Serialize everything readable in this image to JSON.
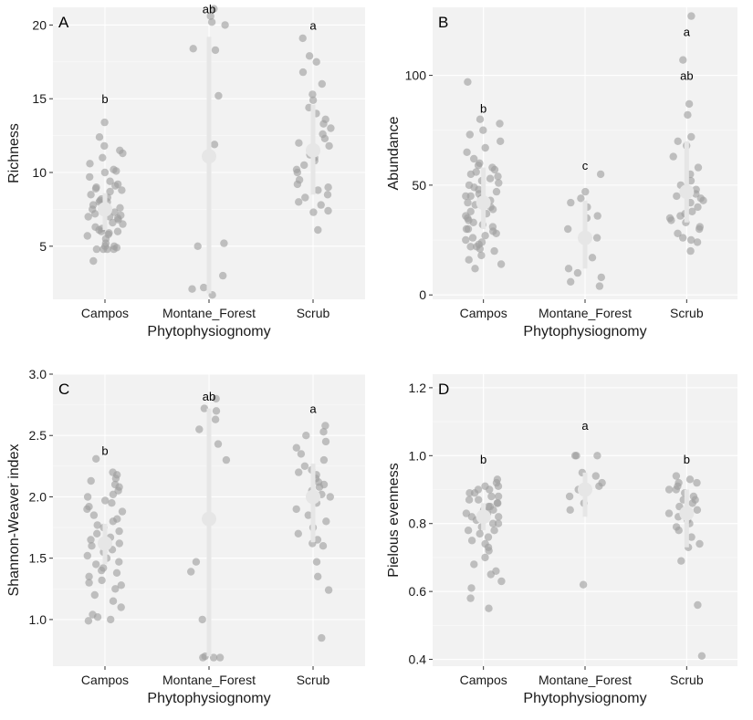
{
  "colors": {
    "panel_background": "#f2f2f2",
    "grid": "#ffffff",
    "points": "#9e9e9e",
    "mean_and_interval": "#e6e6e6",
    "text": "#1a1a1a"
  },
  "chart_data": [
    {
      "type": "scatter",
      "panel": "A",
      "xlabel": "Phytophysiognomy",
      "ylabel": "Richness",
      "categories": [
        "Campos",
        "Montane_Forest",
        "Scrub"
      ],
      "ylim": [
        1.4,
        21.2
      ],
      "yticks": [
        5,
        10,
        15,
        20
      ],
      "grid": true,
      "letters": [
        "b",
        "ab",
        "a"
      ],
      "letter_y": [
        15,
        21.1,
        20
      ],
      "summary": [
        {
          "mean": 7.5,
          "lower": 6.1,
          "upper": 8.6
        },
        {
          "mean": 11.1,
          "lower": 1.8,
          "upper": 19.2
        },
        {
          "mean": 11.5,
          "lower": 8.5,
          "upper": 14.6
        }
      ],
      "series": [
        {
          "name": "Campos",
          "values": [
            4,
            4.8,
            4.8,
            4.8,
            4.8,
            4.9,
            5,
            5,
            5.2,
            5.5,
            5.7,
            5.8,
            5.9,
            6,
            6,
            6.1,
            6.2,
            6.3,
            6.5,
            6.6,
            6.8,
            6.9,
            7,
            7,
            7.1,
            7.2,
            7.3,
            7.5,
            7.6,
            7.8,
            8,
            8,
            8.1,
            8.2,
            8.3,
            8.5,
            8.7,
            8.8,
            8.9,
            9,
            9.1,
            9.2,
            9.4,
            9.7,
            10,
            10.1,
            10.2,
            10.6,
            11,
            11.3,
            11.5,
            11.8,
            12.4,
            13.4
          ]
        },
        {
          "name": "Montane_Forest",
          "values": [
            1.7,
            2.1,
            2.2,
            3,
            5,
            5.2,
            11.9,
            15.2,
            18.4,
            18.3,
            20,
            20.2,
            20.6,
            21.1
          ]
        },
        {
          "name": "Scrub",
          "values": [
            6.1,
            7.3,
            7.4,
            7.8,
            8,
            8.3,
            8.5,
            8.8,
            9,
            9.2,
            9.5,
            10,
            10.2,
            10.5,
            10.8,
            11,
            11.2,
            11.5,
            11.8,
            12,
            12.3,
            12.6,
            13,
            13.3,
            13.6,
            14,
            14.4,
            14.9,
            15.3,
            16,
            16.8,
            17.5,
            17.9,
            19.1
          ]
        }
      ]
    },
    {
      "type": "scatter",
      "panel": "B",
      "xlabel": "Phytophysiognomy",
      "ylabel": "Abundance",
      "categories": [
        "Campos",
        "Montane_Forest",
        "Scrub"
      ],
      "ylim": [
        -2,
        131
      ],
      "yticks": [
        0,
        50,
        100
      ],
      "grid": true,
      "letters": [
        "b",
        "c",
        "a"
      ],
      "extra_letters": [
        {
          "category": "Scrub",
          "y": 100,
          "text": "ab"
        }
      ],
      "letter_y": [
        85,
        59,
        120
      ],
      "summary": [
        {
          "mean": 42,
          "lower": 30,
          "upper": 58
        },
        {
          "mean": 26,
          "lower": 12,
          "upper": 43
        },
        {
          "mean": 47,
          "lower": 33,
          "upper": 70
        }
      ],
      "series": [
        {
          "name": "Campos",
          "values": [
            12,
            14,
            16,
            18,
            20,
            21,
            22,
            22,
            23,
            24,
            25,
            26,
            27,
            28,
            29,
            30,
            30,
            31,
            32,
            33,
            34,
            35,
            36,
            37,
            38,
            39,
            40,
            41,
            42,
            43,
            44,
            45,
            45,
            46,
            47,
            48,
            49,
            50,
            51,
            52,
            53,
            54,
            55,
            56,
            57,
            58,
            59,
            60,
            62,
            65,
            67,
            70,
            73,
            75,
            78,
            80,
            97
          ]
        },
        {
          "name": "Montane_Forest",
          "values": [
            4,
            6,
            8,
            10,
            12,
            17,
            26,
            30,
            35,
            36,
            40,
            42,
            44,
            47,
            55
          ]
        },
        {
          "name": "Scrub",
          "values": [
            20,
            24,
            25,
            26,
            28,
            30,
            31,
            33,
            34,
            35,
            36,
            37,
            38,
            40,
            42,
            43,
            44,
            45,
            46,
            48,
            50,
            52,
            55,
            58,
            63,
            68,
            70,
            72,
            82,
            87,
            107,
            127
          ]
        }
      ]
    },
    {
      "type": "scatter",
      "panel": "C",
      "xlabel": "Phytophysiognomy",
      "ylabel": "Shannon-Weaver index",
      "categories": [
        "Campos",
        "Montane_Forest",
        "Scrub"
      ],
      "ylim": [
        0.62,
        3.0
      ],
      "yticks": [
        1.0,
        1.5,
        2.0,
        2.5,
        3.0
      ],
      "grid": true,
      "letters": [
        "b",
        "ab",
        "a"
      ],
      "letter_y": [
        2.38,
        2.82,
        2.72
      ],
      "summary": [
        {
          "mean": 1.62,
          "lower": 1.45,
          "upper": 1.78
        },
        {
          "mean": 1.82,
          "lower": 0.7,
          "upper": 2.72
        },
        {
          "mean": 2.0,
          "lower": 1.63,
          "upper": 2.27
        }
      ],
      "series": [
        {
          "name": "Campos",
          "values": [
            0.99,
            1.0,
            1.02,
            1.04,
            1.1,
            1.15,
            1.2,
            1.25,
            1.28,
            1.3,
            1.32,
            1.35,
            1.38,
            1.4,
            1.42,
            1.45,
            1.47,
            1.5,
            1.52,
            1.55,
            1.57,
            1.6,
            1.62,
            1.65,
            1.67,
            1.7,
            1.72,
            1.75,
            1.77,
            1.8,
            1.82,
            1.85,
            1.88,
            1.9,
            1.92,
            1.95,
            1.97,
            2.0,
            2.02,
            2.05,
            2.08,
            2.1,
            2.13,
            2.15,
            2.18,
            2.2,
            2.31
          ]
        },
        {
          "name": "Montane_Forest",
          "values": [
            0.69,
            0.69,
            0.69,
            0.7,
            1.0,
            1.39,
            1.47,
            2.3,
            2.43,
            2.55,
            2.63,
            2.7,
            2.72,
            2.8
          ]
        },
        {
          "name": "Scrub",
          "values": [
            0.85,
            1.24,
            1.35,
            1.47,
            1.6,
            1.62,
            1.65,
            1.7,
            1.75,
            1.8,
            1.85,
            1.9,
            1.95,
            2.0,
            2.02,
            2.05,
            2.08,
            2.1,
            2.12,
            2.15,
            2.18,
            2.2,
            2.22,
            2.25,
            2.3,
            2.35,
            2.4,
            2.45,
            2.5,
            2.53,
            2.58
          ]
        }
      ]
    },
    {
      "type": "scatter",
      "panel": "D",
      "xlabel": "Phytophysiognomy",
      "ylabel": "Pielous evenness",
      "categories": [
        "Campos",
        "Montane_Forest",
        "Scrub"
      ],
      "ylim": [
        0.38,
        1.24
      ],
      "yticks": [
        0.4,
        0.6,
        0.8,
        1.0,
        1.2
      ],
      "grid": true,
      "letters": [
        "b",
        "a",
        "b"
      ],
      "letter_y": [
        0.99,
        1.09,
        0.99
      ],
      "summary": [
        {
          "mean": 0.82,
          "lower": 0.78,
          "upper": 0.86
        },
        {
          "mean": 0.9,
          "lower": 0.82,
          "upper": 0.95
        },
        {
          "mean": 0.83,
          "lower": 0.73,
          "upper": 0.9
        }
      ],
      "series": [
        {
          "name": "Campos",
          "values": [
            0.55,
            0.58,
            0.61,
            0.63,
            0.65,
            0.66,
            0.68,
            0.7,
            0.72,
            0.73,
            0.74,
            0.75,
            0.76,
            0.77,
            0.78,
            0.78,
            0.79,
            0.8,
            0.8,
            0.81,
            0.82,
            0.82,
            0.83,
            0.83,
            0.84,
            0.84,
            0.85,
            0.85,
            0.86,
            0.86,
            0.87,
            0.87,
            0.88,
            0.88,
            0.89,
            0.89,
            0.9,
            0.9,
            0.91,
            0.91,
            0.92,
            0.93
          ]
        },
        {
          "name": "Montane_Forest",
          "values": [
            0.62,
            0.84,
            0.86,
            0.88,
            0.9,
            0.91,
            0.92,
            0.94,
            0.95,
            1.0,
            1.0,
            1.0
          ]
        },
        {
          "name": "Scrub",
          "values": [
            0.41,
            0.56,
            0.69,
            0.73,
            0.74,
            0.76,
            0.78,
            0.79,
            0.8,
            0.81,
            0.82,
            0.83,
            0.84,
            0.85,
            0.86,
            0.87,
            0.87,
            0.88,
            0.89,
            0.9,
            0.9,
            0.91,
            0.92,
            0.92,
            0.93,
            0.94
          ]
        }
      ]
    }
  ]
}
